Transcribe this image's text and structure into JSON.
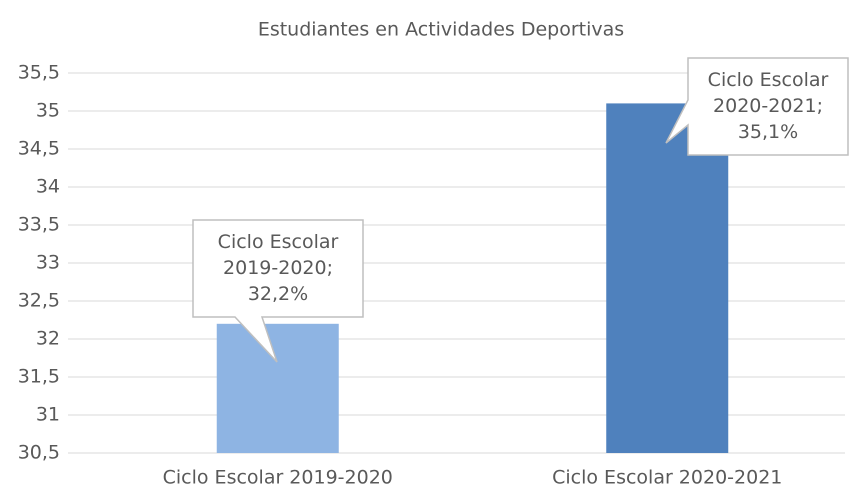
{
  "chart_data": {
    "type": "bar",
    "title": "Estudiantes en Actividades Deportivas",
    "categories": [
      "Ciclo Escolar 2019-2020",
      "Ciclo Escolar 2020-2021"
    ],
    "values": [
      32.2,
      35.1
    ],
    "value_labels": [
      "Ciclo Escolar 2019-2020; 32,2%",
      "Ciclo Escolar 2020-2021; 35,1%"
    ],
    "colors": [
      "#8eb4e3",
      "#4f81bd"
    ],
    "ylim": [
      30.5,
      35.5
    ],
    "yticks": [
      {
        "value": 30.5,
        "label": "30,5"
      },
      31,
      {
        "value": 31.5,
        "label": "31,5"
      },
      32,
      {
        "value": 32.5,
        "label": "32,5"
      },
      33,
      {
        "value": 33.5,
        "label": "33,5"
      },
      34,
      {
        "value": 34.5,
        "label": "34,5"
      },
      35,
      {
        "value": 35.5,
        "label": "35,5"
      }
    ],
    "grid": true
  }
}
